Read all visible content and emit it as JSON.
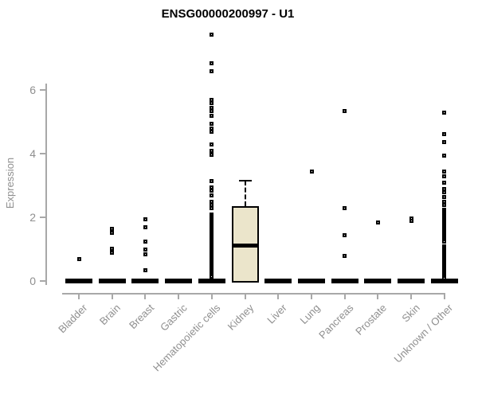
{
  "chart_data": {
    "type": "boxplot",
    "title": "ENSG00000200997 - U1",
    "ylabel": "Expression",
    "xlabel": "",
    "ylim": [
      0,
      7.9
    ],
    "yticks": [
      0,
      2,
      4,
      6
    ],
    "grid": false,
    "legend": null,
    "categories": [
      "Bladder",
      "Brain",
      "Breast",
      "Gastric",
      "Hematopoietic cells",
      "Kidney",
      "Liver",
      "Lung",
      "Pancreas",
      "Prostate",
      "Skin",
      "Unknown / Other"
    ],
    "boxes": [
      {
        "category": "Bladder",
        "q1": 0,
        "median": 0,
        "q3": 0,
        "whisker_low": 0,
        "whisker_high": 0
      },
      {
        "category": "Brain",
        "q1": 0,
        "median": 0,
        "q3": 0,
        "whisker_low": 0,
        "whisker_high": 0
      },
      {
        "category": "Breast",
        "q1": 0,
        "median": 0,
        "q3": 0,
        "whisker_low": 0,
        "whisker_high": 0
      },
      {
        "category": "Gastric",
        "q1": 0,
        "median": 0,
        "q3": 0,
        "whisker_low": 0,
        "whisker_high": 0
      },
      {
        "category": "Hematopoietic cells",
        "q1": 0,
        "median": 0,
        "q3": 0,
        "whisker_low": 0,
        "whisker_high": 0
      },
      {
        "category": "Kidney",
        "q1": 0,
        "median": 1.1,
        "q3": 2.35,
        "whisker_low": 0,
        "whisker_high": 3.15
      },
      {
        "category": "Liver",
        "q1": 0,
        "median": 0,
        "q3": 0,
        "whisker_low": 0,
        "whisker_high": 0
      },
      {
        "category": "Lung",
        "q1": 0,
        "median": 0,
        "q3": 0,
        "whisker_low": 0,
        "whisker_high": 0
      },
      {
        "category": "Pancreas",
        "q1": 0,
        "median": 0,
        "q3": 0,
        "whisker_low": 0,
        "whisker_high": 0
      },
      {
        "category": "Prostate",
        "q1": 0,
        "median": 0,
        "q3": 0,
        "whisker_low": 0,
        "whisker_high": 0
      },
      {
        "category": "Skin",
        "q1": 0,
        "median": 0,
        "q3": 0,
        "whisker_low": 0,
        "whisker_high": 0
      },
      {
        "category": "Unknown / Other",
        "q1": 0,
        "median": 0,
        "q3": 0,
        "whisker_low": 0,
        "whisker_high": 0
      }
    ],
    "outliers": [
      {
        "category": "Bladder",
        "values": [
          0.68
        ]
      },
      {
        "category": "Brain",
        "values": [
          1.63,
          1.52,
          1.02,
          0.88
        ]
      },
      {
        "category": "Breast",
        "values": [
          1.93,
          1.68,
          1.23,
          1.0,
          0.85,
          0.33
        ]
      },
      {
        "category": "Gastric",
        "values": []
      },
      {
        "category": "Hematopoietic cells",
        "values": [
          7.75,
          6.85,
          6.6,
          5.7,
          5.58,
          5.45,
          5.33,
          5.2,
          4.95,
          4.78,
          4.68,
          4.28,
          4.08,
          3.97,
          3.13,
          2.95,
          2.83,
          2.68,
          2.5,
          2.4,
          2.28,
          2.1,
          2.05,
          2.0,
          1.95,
          1.9,
          1.85,
          1.8,
          1.75,
          1.7,
          1.65,
          1.6,
          1.55,
          1.5,
          1.45,
          1.4,
          1.35,
          1.3,
          1.25,
          1.2,
          1.15,
          1.1,
          1.05,
          1.0,
          0.95,
          0.9,
          0.85,
          0.8,
          0.75,
          0.7,
          0.65,
          0.6,
          0.55,
          0.5,
          0.45,
          0.4,
          0.35,
          0.3,
          0.25,
          0.2,
          0.15
        ]
      },
      {
        "category": "Kidney",
        "values": []
      },
      {
        "category": "Liver",
        "values": []
      },
      {
        "category": "Lung",
        "values": [
          3.43
        ]
      },
      {
        "category": "Pancreas",
        "values": [
          5.33,
          2.28,
          1.43,
          0.8
        ]
      },
      {
        "category": "Prostate",
        "values": [
          1.85
        ]
      },
      {
        "category": "Skin",
        "values": [
          1.97,
          1.9
        ]
      },
      {
        "category": "Unknown / Other",
        "values": [
          5.3,
          4.62,
          4.36,
          3.95,
          3.45,
          3.3,
          3.1,
          2.9,
          2.78,
          2.65,
          2.5,
          2.38,
          2.25,
          2.2,
          2.15,
          2.1,
          2.05,
          2.0,
          1.95,
          1.9,
          1.85,
          1.8,
          1.75,
          1.7,
          1.65,
          1.6,
          1.55,
          1.5,
          1.45,
          1.4,
          1.35,
          1.3,
          1.25,
          1.1,
          1.05,
          1.0,
          0.95,
          0.9,
          0.85,
          0.8,
          0.75,
          0.7,
          0.65,
          0.6,
          0.55,
          0.5,
          0.45,
          0.4,
          0.35,
          0.3,
          0.25,
          0.2,
          0.15,
          0.1
        ]
      }
    ],
    "colors": {
      "box_fill": "#EBE5CB",
      "box_border": "#000000",
      "median": "#000000",
      "point": "#000000",
      "axis": "#A8A8A8",
      "tick_label": "#8F8F8F",
      "title": "#000000"
    }
  }
}
